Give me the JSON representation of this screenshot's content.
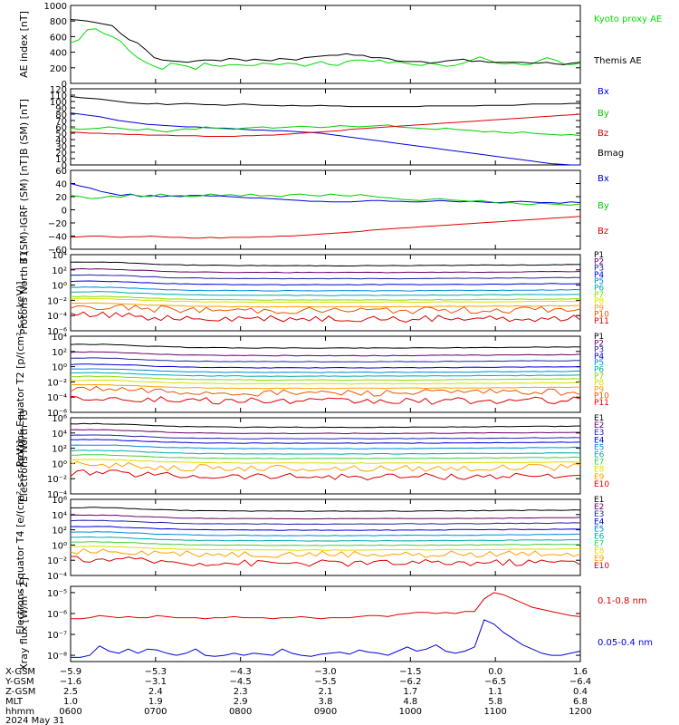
{
  "chart_data": [
    {
      "type": "line",
      "ylabel": "AE index [nT]",
      "ylim": [
        0,
        1000
      ],
      "yscale": "linear",
      "yticks": [
        "0",
        "200",
        "400",
        "600",
        "800",
        "1000"
      ],
      "series": [
        {
          "name": "Kyoto proxy AE",
          "color": "#00dd00",
          "values": [
            520,
            560,
            690,
            700,
            640,
            600,
            540,
            420,
            330,
            270,
            220,
            180,
            260,
            240,
            220,
            180,
            260,
            230,
            220,
            240,
            240,
            230,
            230,
            260,
            250,
            240,
            260,
            250,
            220,
            250,
            280,
            240,
            230,
            280,
            300,
            300,
            280,
            300,
            260,
            280,
            260,
            240,
            230,
            260,
            240,
            220,
            230,
            260,
            300,
            340,
            300,
            260,
            250,
            260,
            240,
            240,
            290,
            330,
            300,
            250,
            240,
            260
          ]
        },
        {
          "name": "Themis AE",
          "color": "#000000",
          "values": [
            820,
            810,
            800,
            780,
            760,
            740,
            640,
            560,
            520,
            430,
            330,
            300,
            290,
            280,
            270,
            290,
            300,
            300,
            290,
            320,
            310,
            290,
            310,
            300,
            290,
            320,
            310,
            300,
            330,
            340,
            350,
            360,
            360,
            380,
            360,
            360,
            330,
            330,
            320,
            290,
            280,
            280,
            280,
            260,
            270,
            290,
            300,
            310,
            280,
            290,
            270,
            270,
            270,
            270,
            270,
            260,
            260,
            270,
            250,
            240,
            260,
            270
          ]
        }
      ]
    },
    {
      "type": "line",
      "ylabel": "B (SM) [nT]",
      "ylim": [
        0,
        120
      ],
      "yscale": "linear",
      "yticks": [
        "0",
        "10",
        "20",
        "30",
        "40",
        "50",
        "60",
        "70",
        "80",
        "90",
        "100",
        "110",
        "120"
      ],
      "series": [
        {
          "name": "Bx",
          "color": "#0000dd",
          "values": [
            82,
            80,
            78,
            76,
            73,
            70,
            68,
            66,
            64,
            63,
            62,
            61,
            60,
            60,
            59,
            58,
            58,
            57,
            56,
            55,
            55,
            54,
            54,
            53,
            52,
            51,
            50,
            48,
            46,
            44,
            42,
            40,
            38,
            36,
            34,
            32,
            30,
            28,
            26,
            24,
            22,
            20,
            18,
            16,
            14,
            12,
            10,
            8,
            6,
            4,
            2,
            1,
            0,
            0
          ]
        },
        {
          "name": "By",
          "color": "#00cc00",
          "values": [
            58,
            56,
            57,
            58,
            60,
            58,
            56,
            55,
            57,
            54,
            52,
            55,
            57,
            56,
            60,
            58,
            57,
            56,
            58,
            59,
            60,
            58,
            59,
            60,
            61,
            60,
            59,
            60,
            62,
            61,
            60,
            61,
            62,
            63,
            60,
            59,
            58,
            57,
            56,
            58,
            56,
            55,
            54,
            52,
            53,
            51,
            50,
            52,
            50,
            49,
            48,
            47,
            48,
            46
          ]
        },
        {
          "name": "Bz",
          "color": "#dd0000",
          "values": [
            52,
            51,
            50,
            50,
            49,
            49,
            48,
            48,
            47,
            47,
            47,
            46,
            46,
            46,
            45,
            45,
            45,
            45,
            46,
            46,
            47,
            47,
            48,
            49,
            50,
            51,
            52,
            53,
            54,
            56,
            57,
            58,
            59,
            60,
            61,
            62,
            63,
            64,
            65,
            66,
            67,
            68,
            69,
            70,
            71,
            72,
            73,
            74,
            75,
            76,
            77,
            78,
            79,
            80
          ]
        },
        {
          "name": "Bmag",
          "color": "#000000",
          "values": [
            108,
            106,
            105,
            104,
            102,
            100,
            98,
            97,
            96,
            97,
            95,
            96,
            97,
            96,
            95,
            95,
            94,
            95,
            96,
            95,
            94,
            94,
            93,
            94,
            93,
            93,
            94,
            93,
            93,
            92,
            92,
            92,
            92,
            92,
            92,
            92,
            92,
            93,
            93,
            93,
            93,
            93,
            93,
            94,
            94,
            94,
            94,
            95,
            96,
            96,
            96,
            96,
            97,
            97
          ]
        }
      ]
    },
    {
      "type": "line",
      "ylabel": "B (SM)-IGRF (SM) [nT]",
      "ylim": [
        -60,
        60
      ],
      "yscale": "linear",
      "yticks": [
        "−60",
        "−40",
        "−20",
        "0",
        "20",
        "40",
        "60"
      ],
      "series": [
        {
          "name": "Bx",
          "color": "#0000dd",
          "values": [
            40,
            36,
            33,
            28,
            25,
            22,
            24,
            20,
            22,
            20,
            21,
            20,
            22,
            22,
            21,
            21,
            20,
            19,
            18,
            18,
            17,
            16,
            15,
            14,
            13,
            13,
            12,
            12,
            12,
            13,
            14,
            14,
            13,
            13,
            12,
            12,
            13,
            14,
            13,
            12,
            13,
            12,
            11,
            11,
            12,
            13,
            12,
            11,
            11,
            10,
            12,
            11
          ]
        },
        {
          "name": "By",
          "color": "#00cc00",
          "values": [
            22,
            20,
            17,
            18,
            21,
            19,
            23,
            21,
            20,
            24,
            21,
            22,
            20,
            21,
            24,
            22,
            23,
            21,
            24,
            21,
            22,
            20,
            23,
            24,
            22,
            21,
            24,
            22,
            21,
            23,
            21,
            19,
            18,
            16,
            15,
            14,
            16,
            17,
            15,
            14,
            13,
            14,
            12,
            10,
            11,
            9,
            8,
            10,
            9,
            8,
            7,
            9
          ]
        },
        {
          "name": "Bz",
          "color": "#dd0000",
          "values": [
            -42,
            -41,
            -40,
            -40,
            -41,
            -42,
            -41,
            -41,
            -40,
            -41,
            -42,
            -42,
            -43,
            -43,
            -42,
            -43,
            -42,
            -42,
            -42,
            -41,
            -41,
            -40,
            -40,
            -39,
            -38,
            -37,
            -36,
            -35,
            -34,
            -33,
            -31,
            -30,
            -29,
            -28,
            -27,
            -26,
            -25,
            -24,
            -23,
            -22,
            -21,
            -20,
            -19,
            -18,
            -17,
            -16,
            -15,
            -14,
            -13,
            -12,
            -11,
            -10
          ]
        }
      ]
    },
    {
      "type": "line",
      "ylabel": "Protons North T1",
      "ylim": [
        -6,
        4
      ],
      "yscale": "log10",
      "yticks": [
        "10⁻⁶",
        "10⁻⁴",
        "10⁻²",
        "10⁰",
        "10²",
        "10⁴"
      ],
      "series": [
        {
          "name": "P1",
          "color": "#000000",
          "logval": 2.7
        },
        {
          "name": "P2",
          "color": "#6a006a",
          "logval": 1.8
        },
        {
          "name": "P3",
          "color": "#2222aa",
          "logval": 1.0
        },
        {
          "name": "P4",
          "color": "#0000dd",
          "logval": 0.2
        },
        {
          "name": "P5",
          "color": "#0088dd",
          "logval": -0.6
        },
        {
          "name": "P6",
          "color": "#00aaaa",
          "logval": -1.2
        },
        {
          "name": "P7",
          "color": "#88dd00",
          "logval": -1.8
        },
        {
          "name": "P8",
          "color": "#dddd00",
          "logval": -2.1
        },
        {
          "name": "P9",
          "color": "#ffa000",
          "logval": -2.7
        },
        {
          "name": "P10",
          "color": "#ee5500",
          "logval": -3.2
        },
        {
          "name": "P11",
          "color": "#dd0000",
          "logval": -4.3
        }
      ]
    },
    {
      "type": "line",
      "ylabel": "Protons Equator T2 [p/(cm²-s-sr-keV)]",
      "ylim": [
        -6,
        4
      ],
      "yscale": "log10",
      "yticks": [
        "10⁻⁶",
        "10⁻⁴",
        "10⁻²",
        "10⁰",
        "10²",
        "10⁴"
      ],
      "series": [
        {
          "name": "P1",
          "color": "#000000",
          "logval": 2.6
        },
        {
          "name": "P2",
          "color": "#6a006a",
          "logval": 1.6
        },
        {
          "name": "P3",
          "color": "#2222aa",
          "logval": 0.8
        },
        {
          "name": "P4",
          "color": "#0000dd",
          "logval": 0.0
        },
        {
          "name": "P5",
          "color": "#0088dd",
          "logval": -0.6
        },
        {
          "name": "P6",
          "color": "#00aaaa",
          "logval": -1.1
        },
        {
          "name": "P7",
          "color": "#88dd00",
          "logval": -1.6
        },
        {
          "name": "P8",
          "color": "#dddd00",
          "logval": -2.1
        },
        {
          "name": "P9",
          "color": "#ffa000",
          "logval": -2.7
        },
        {
          "name": "P10",
          "color": "#ee5500",
          "logval": -3.3
        },
        {
          "name": "P11",
          "color": "#dd0000",
          "logval": -4.4
        }
      ]
    },
    {
      "type": "line",
      "ylabel": "Electrons North T3",
      "ylim": [
        -4,
        6
      ],
      "yscale": "log10",
      "yticks": [
        "10⁻⁴",
        "10⁻²",
        "10⁰",
        "10²",
        "10⁴",
        "10⁶"
      ],
      "series": [
        {
          "name": "E1",
          "color": "#000000",
          "logval": 4.9
        },
        {
          "name": "E2",
          "color": "#6a006a",
          "logval": 4.1
        },
        {
          "name": "E3",
          "color": "#2222aa",
          "logval": 3.4
        },
        {
          "name": "E4",
          "color": "#0000dd",
          "logval": 2.8
        },
        {
          "name": "E5",
          "color": "#0088dd",
          "logval": 2.1
        },
        {
          "name": "E6",
          "color": "#00aaaa",
          "logval": 1.4
        },
        {
          "name": "E7",
          "color": "#44cc44",
          "logval": 0.8
        },
        {
          "name": "E8",
          "color": "#dddd00",
          "logval": 0.2
        },
        {
          "name": "E9",
          "color": "#ffa000",
          "logval": -0.5
        },
        {
          "name": "E10",
          "color": "#dd0000",
          "logval": -1.6
        }
      ]
    },
    {
      "type": "line",
      "ylabel": "Electrons Equator T4 [e/(cm²-s-sr-keV)]",
      "ylim": [
        -4,
        6
      ],
      "yscale": "log10",
      "yticks": [
        "10⁻⁴",
        "10⁻²",
        "10⁰",
        "10²",
        "10⁴",
        "10⁶"
      ],
      "series": [
        {
          "name": "E1",
          "color": "#000000",
          "logval": 4.6
        },
        {
          "name": "E2",
          "color": "#6a006a",
          "logval": 3.6
        },
        {
          "name": "E3",
          "color": "#2222aa",
          "logval": 2.9
        },
        {
          "name": "E4",
          "color": "#0000dd",
          "logval": 2.1
        },
        {
          "name": "E5",
          "color": "#0088dd",
          "logval": 1.4
        },
        {
          "name": "E6",
          "color": "#00aaaa",
          "logval": 0.7
        },
        {
          "name": "E7",
          "color": "#44cc44",
          "logval": 0.1
        },
        {
          "name": "E8",
          "color": "#dddd00",
          "logval": -0.5
        },
        {
          "name": "E9",
          "color": "#ffa000",
          "logval": -1.1
        },
        {
          "name": "E10",
          "color": "#dd0000",
          "logval": -2.2
        }
      ]
    },
    {
      "type": "line",
      "ylabel": "Xray flux [W/m^2]",
      "ylim": [
        -8.3,
        -4.7
      ],
      "yscale": "log10",
      "yticks": [
        "10⁻⁸",
        "10⁻⁷",
        "10⁻⁶",
        "10⁻⁵"
      ],
      "series": [
        {
          "name": "0.1-0.8 nm",
          "color": "#dd0000",
          "values": [
            -6.25,
            -6.25,
            -6.2,
            -6.1,
            -6.15,
            -6.2,
            -6.15,
            -6.2,
            -6.2,
            -6.1,
            -6.15,
            -6.2,
            -6.2,
            -6.2,
            -6.25,
            -6.2,
            -6.2,
            -6.15,
            -6.2,
            -6.2,
            -6.2,
            -6.25,
            -6.2,
            -6.2,
            -6.15,
            -6.2,
            -6.25,
            -6.2,
            -6.2,
            -6.2,
            -6.15,
            -6.1,
            -6.1,
            -6.15,
            -6.05,
            -6.0,
            -5.95,
            -5.95,
            -6.0,
            -5.95,
            -6.0,
            -5.9,
            -5.9,
            -5.3,
            -5.0,
            -5.1,
            -5.3,
            -5.5,
            -5.7,
            -5.8,
            -5.9,
            -6.0,
            -6.1,
            -6.15
          ]
        },
        {
          "name": "0.05-0.4 nm",
          "color": "#0000dd",
          "values": [
            -8.1,
            -8.1,
            -8.0,
            -7.55,
            -7.8,
            -7.9,
            -7.7,
            -7.9,
            -7.7,
            -7.75,
            -7.9,
            -8.0,
            -7.9,
            -7.7,
            -8.0,
            -8.05,
            -8.0,
            -7.9,
            -8.0,
            -7.9,
            -7.95,
            -8.0,
            -7.7,
            -7.9,
            -8.0,
            -8.05,
            -7.95,
            -7.9,
            -7.85,
            -7.95,
            -7.75,
            -7.85,
            -7.9,
            -8.0,
            -7.8,
            -7.6,
            -7.8,
            -7.7,
            -7.5,
            -7.8,
            -7.9,
            -7.8,
            -7.6,
            -6.3,
            -6.5,
            -6.9,
            -7.2,
            -7.5,
            -7.7,
            -7.9,
            -8.0,
            -8.0,
            -7.9,
            -7.8
          ]
        }
      ]
    }
  ],
  "xaxis": {
    "categories": [
      "0600",
      "0700",
      "0800",
      "0900",
      "1000",
      "1100",
      "1200"
    ],
    "rows": [
      {
        "label": "X-GSM",
        "values": [
          "−5.9",
          "−5.3",
          "−4.3",
          "−3.0",
          "−1.5",
          "0.0",
          "1.6"
        ]
      },
      {
        "label": "Y-GSM",
        "values": [
          "−1.6",
          "−3.1",
          "−4.5",
          "−5.5",
          "−6.2",
          "−6.5",
          "−6.4"
        ]
      },
      {
        "label": "Z-GSM",
        "values": [
          "2.5",
          "2.4",
          "2.3",
          "2.1",
          "1.7",
          "1.1",
          "0.4"
        ]
      },
      {
        "label": "MLT",
        "values": [
          "1.0",
          "1.9",
          "2.9",
          "3.8",
          "4.8",
          "5.8",
          "6.8"
        ]
      },
      {
        "label": "hhmm",
        "values": [
          "0600",
          "0700",
          "0800",
          "0900",
          "1000",
          "1100",
          "1200"
        ]
      }
    ],
    "date": "2024 May 31"
  }
}
